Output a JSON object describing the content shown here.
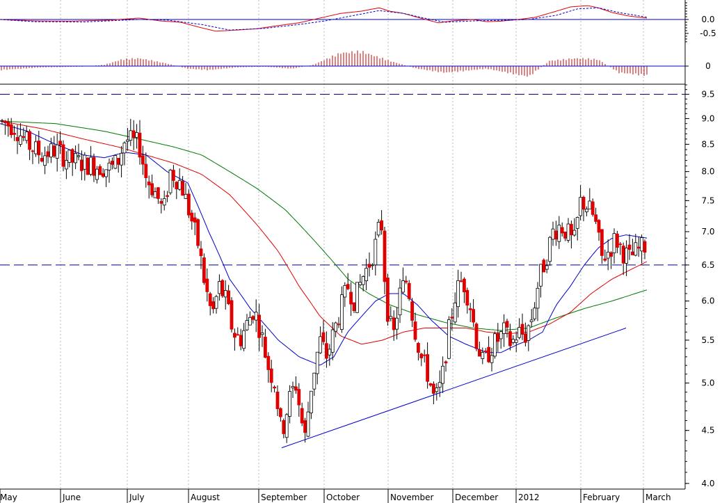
{
  "chart_data": [
    {
      "panel": "macd",
      "type": "line",
      "y_ticks": [
        "0.0",
        "-0.5"
      ],
      "y_tick_values": [
        0.0,
        -0.5
      ],
      "ylim": [
        -0.85,
        0.7
      ],
      "colors": {
        "macd": "#e00000",
        "signal": "#0000cc",
        "zero": "#0000cc"
      },
      "series": [
        {
          "key": "macd",
          "style": "solid",
          "points": [
            [
              0,
              0.0
            ],
            [
              50,
              -0.05
            ],
            [
              100,
              -0.06
            ],
            [
              160,
              -0.02
            ],
            [
              200,
              0.05
            ],
            [
              230,
              -0.05
            ],
            [
              260,
              -0.1
            ],
            [
              290,
              -0.3
            ],
            [
              310,
              -0.42
            ],
            [
              340,
              -0.38
            ],
            [
              370,
              -0.33
            ],
            [
              400,
              -0.22
            ],
            [
              430,
              -0.12
            ],
            [
              460,
              0.05
            ],
            [
              490,
              0.22
            ],
            [
              520,
              0.3
            ],
            [
              545,
              0.42
            ],
            [
              560,
              0.3
            ],
            [
              580,
              0.22
            ],
            [
              600,
              0.08
            ],
            [
              630,
              -0.12
            ],
            [
              650,
              -0.05
            ],
            [
              680,
              0.0
            ],
            [
              700,
              -0.08
            ],
            [
              720,
              -0.06
            ],
            [
              745,
              0.0
            ],
            [
              770,
              0.08
            ],
            [
              800,
              0.3
            ],
            [
              820,
              0.45
            ],
            [
              845,
              0.5
            ],
            [
              860,
              0.42
            ],
            [
              880,
              0.25
            ],
            [
              905,
              0.12
            ],
            [
              930,
              0.05
            ]
          ]
        },
        {
          "key": "signal",
          "style": "dashed",
          "points": [
            [
              0,
              0.0
            ],
            [
              50,
              -0.08
            ],
            [
              120,
              -0.09
            ],
            [
              200,
              0.0
            ],
            [
              240,
              -0.02
            ],
            [
              290,
              -0.18
            ],
            [
              330,
              -0.38
            ],
            [
              380,
              -0.32
            ],
            [
              430,
              -0.18
            ],
            [
              470,
              -0.04
            ],
            [
              510,
              0.15
            ],
            [
              545,
              0.32
            ],
            [
              580,
              0.22
            ],
            [
              610,
              0.05
            ],
            [
              640,
              -0.1
            ],
            [
              680,
              -0.05
            ],
            [
              720,
              -0.03
            ],
            [
              760,
              0.0
            ],
            [
              800,
              0.15
            ],
            [
              830,
              0.38
            ],
            [
              860,
              0.42
            ],
            [
              890,
              0.25
            ],
            [
              930,
              0.08
            ]
          ]
        }
      ]
    },
    {
      "panel": "histogram",
      "type": "bar",
      "y_ticks": [
        "0"
      ],
      "y_tick_values": [
        0
      ],
      "ylim": [
        -0.6,
        0.6
      ],
      "colors": {
        "bars": "#c00000",
        "zero": "#0000cc"
      },
      "profile": [
        [
          0,
          -0.15
        ],
        [
          60,
          -0.05
        ],
        [
          120,
          -0.02
        ],
        [
          150,
          0.05
        ],
        [
          175,
          0.25
        ],
        [
          200,
          0.3
        ],
        [
          240,
          0.1
        ],
        [
          270,
          -0.1
        ],
        [
          300,
          -0.15
        ],
        [
          340,
          -0.05
        ],
        [
          380,
          -0.02
        ],
        [
          420,
          -0.1
        ],
        [
          450,
          0.05
        ],
        [
          490,
          0.5
        ],
        [
          520,
          0.55
        ],
        [
          560,
          0.2
        ],
        [
          600,
          -0.1
        ],
        [
          640,
          -0.25
        ],
        [
          700,
          -0.1
        ],
        [
          760,
          -0.4
        ],
        [
          790,
          0.2
        ],
        [
          830,
          0.3
        ],
        [
          860,
          0.25
        ],
        [
          890,
          -0.25
        ],
        [
          930,
          -0.35
        ]
      ]
    },
    {
      "panel": "price",
      "type": "candlestick",
      "x_categories": [
        "May",
        "June",
        "July",
        "August",
        "September",
        "October",
        "November",
        "December",
        "2012",
        "February",
        "March"
      ],
      "y_ticks": [
        "9.5",
        "9.0",
        "8.5",
        "8.0",
        "7.5",
        "7.0",
        "6.5",
        "6.0",
        "5.5",
        "5.0",
        "4.5",
        "4.0"
      ],
      "y_tick_values": [
        9.5,
        9.0,
        8.5,
        8.0,
        7.5,
        7.0,
        6.5,
        6.0,
        5.5,
        5.0,
        4.5,
        4.0
      ],
      "ylim": [
        3.95,
        9.7
      ],
      "y_scale": "log",
      "grid": "vertical dotted",
      "reference_lines": [
        9.5,
        6.5
      ],
      "colors": {
        "up": "#ffffff",
        "down": "#e00000",
        "outline": "#000000",
        "ma_short": "#0000cc",
        "ma_mid": "#e00000",
        "ma_long": "#007700",
        "trendline": "#0000cc"
      },
      "trendline": [
        [
          405,
          4.33
        ],
        [
          900,
          5.65
        ]
      ],
      "anchors": [
        [
          0,
          8.95
        ],
        [
          20,
          8.85
        ],
        [
          40,
          8.5
        ],
        [
          60,
          8.3
        ],
        [
          80,
          8.4
        ],
        [
          100,
          8.2
        ],
        [
          120,
          8.15
        ],
        [
          140,
          8.1
        ],
        [
          160,
          8.05
        ],
        [
          170,
          8.2
        ],
        [
          180,
          8.6
        ],
        [
          200,
          8.5
        ],
        [
          210,
          7.9
        ],
        [
          225,
          7.6
        ],
        [
          235,
          7.3
        ],
        [
          245,
          8.0
        ],
        [
          260,
          7.8
        ],
        [
          275,
          7.2
        ],
        [
          285,
          6.8
        ],
        [
          295,
          6.2
        ],
        [
          305,
          5.8
        ],
        [
          315,
          6.2
        ],
        [
          325,
          6.0
        ],
        [
          335,
          5.6
        ],
        [
          345,
          5.5
        ],
        [
          355,
          5.7
        ],
        [
          365,
          5.9
        ],
        [
          375,
          5.6
        ],
        [
          385,
          5.2
        ],
        [
          395,
          5.0
        ],
        [
          405,
          4.45
        ],
        [
          415,
          4.8
        ],
        [
          425,
          5.0
        ],
        [
          438,
          4.4
        ],
        [
          448,
          5.0
        ],
        [
          460,
          5.5
        ],
        [
          470,
          5.3
        ],
        [
          480,
          5.6
        ],
        [
          490,
          5.9
        ],
        [
          500,
          6.2
        ],
        [
          510,
          6.0
        ],
        [
          520,
          6.3
        ],
        [
          530,
          6.5
        ],
        [
          540,
          6.8
        ],
        [
          548,
          7.2
        ],
        [
          555,
          6.0
        ],
        [
          565,
          5.5
        ],
        [
          575,
          6.1
        ],
        [
          585,
          6.3
        ],
        [
          595,
          5.7
        ],
        [
          605,
          5.3
        ],
        [
          615,
          5.1
        ],
        [
          625,
          4.8
        ],
        [
          635,
          5.0
        ],
        [
          645,
          5.6
        ],
        [
          655,
          6.1
        ],
        [
          665,
          6.3
        ],
        [
          675,
          6.0
        ],
        [
          685,
          5.5
        ],
        [
          695,
          5.2
        ],
        [
          705,
          5.4
        ],
        [
          715,
          5.5
        ],
        [
          725,
          5.6
        ],
        [
          735,
          5.45
        ],
        [
          745,
          5.6
        ],
        [
          755,
          5.55
        ],
        [
          765,
          5.8
        ],
        [
          775,
          6.3
        ],
        [
          785,
          6.6
        ],
        [
          795,
          7.0
        ],
        [
          805,
          7.1
        ],
        [
          815,
          7.0
        ],
        [
          825,
          6.8
        ],
        [
          835,
          7.5
        ],
        [
          845,
          7.4
        ],
        [
          855,
          7.2
        ],
        [
          865,
          6.6
        ],
        [
          875,
          6.7
        ],
        [
          885,
          6.9
        ],
        [
          895,
          6.7
        ],
        [
          905,
          6.6
        ],
        [
          915,
          6.7
        ],
        [
          930,
          6.8
        ]
      ],
      "ma_short": [
        [
          0,
          8.9
        ],
        [
          40,
          8.75
        ],
        [
          80,
          8.5
        ],
        [
          120,
          8.3
        ],
        [
          150,
          8.25
        ],
        [
          180,
          8.35
        ],
        [
          210,
          8.3
        ],
        [
          240,
          8.0
        ],
        [
          270,
          7.8
        ],
        [
          300,
          7.0
        ],
        [
          330,
          6.3
        ],
        [
          360,
          5.9
        ],
        [
          400,
          5.5
        ],
        [
          430,
          5.3
        ],
        [
          460,
          5.2
        ],
        [
          480,
          5.3
        ],
        [
          500,
          5.6
        ],
        [
          520,
          5.8
        ],
        [
          540,
          6.0
        ],
        [
          560,
          6.1
        ],
        [
          580,
          6.1
        ],
        [
          600,
          5.95
        ],
        [
          620,
          5.75
        ],
        [
          645,
          5.55
        ],
        [
          670,
          5.45
        ],
        [
          700,
          5.35
        ],
        [
          720,
          5.35
        ],
        [
          745,
          5.45
        ],
        [
          760,
          5.5
        ],
        [
          780,
          5.6
        ],
        [
          800,
          5.95
        ],
        [
          820,
          6.2
        ],
        [
          840,
          6.5
        ],
        [
          860,
          6.75
        ],
        [
          880,
          6.9
        ],
        [
          900,
          6.95
        ],
        [
          930,
          6.9
        ]
      ],
      "ma_mid": [
        [
          0,
          8.95
        ],
        [
          60,
          8.8
        ],
        [
          120,
          8.6
        ],
        [
          170,
          8.45
        ],
        [
          210,
          8.3
        ],
        [
          250,
          8.15
        ],
        [
          290,
          7.95
        ],
        [
          330,
          7.6
        ],
        [
          370,
          7.1
        ],
        [
          400,
          6.7
        ],
        [
          430,
          6.2
        ],
        [
          460,
          5.8
        ],
        [
          490,
          5.55
        ],
        [
          520,
          5.45
        ],
        [
          550,
          5.5
        ],
        [
          580,
          5.6
        ],
        [
          610,
          5.65
        ],
        [
          640,
          5.65
        ],
        [
          670,
          5.65
        ],
        [
          700,
          5.6
        ],
        [
          730,
          5.58
        ],
        [
          760,
          5.6
        ],
        [
          790,
          5.7
        ],
        [
          820,
          5.85
        ],
        [
          850,
          6.1
        ],
        [
          880,
          6.3
        ],
        [
          910,
          6.45
        ],
        [
          930,
          6.55
        ]
      ],
      "ma_long": [
        [
          0,
          8.95
        ],
        [
          80,
          8.9
        ],
        [
          150,
          8.75
        ],
        [
          200,
          8.6
        ],
        [
          250,
          8.45
        ],
        [
          290,
          8.3
        ],
        [
          330,
          8.0
        ],
        [
          370,
          7.7
        ],
        [
          410,
          7.35
        ],
        [
          440,
          7.0
        ],
        [
          470,
          6.65
        ],
        [
          500,
          6.3
        ],
        [
          530,
          6.1
        ],
        [
          560,
          5.95
        ],
        [
          600,
          5.82
        ],
        [
          640,
          5.72
        ],
        [
          680,
          5.65
        ],
        [
          720,
          5.62
        ],
        [
          760,
          5.65
        ],
        [
          800,
          5.78
        ],
        [
          840,
          5.9
        ],
        [
          880,
          6.0
        ],
        [
          930,
          6.15
        ]
      ]
    }
  ]
}
